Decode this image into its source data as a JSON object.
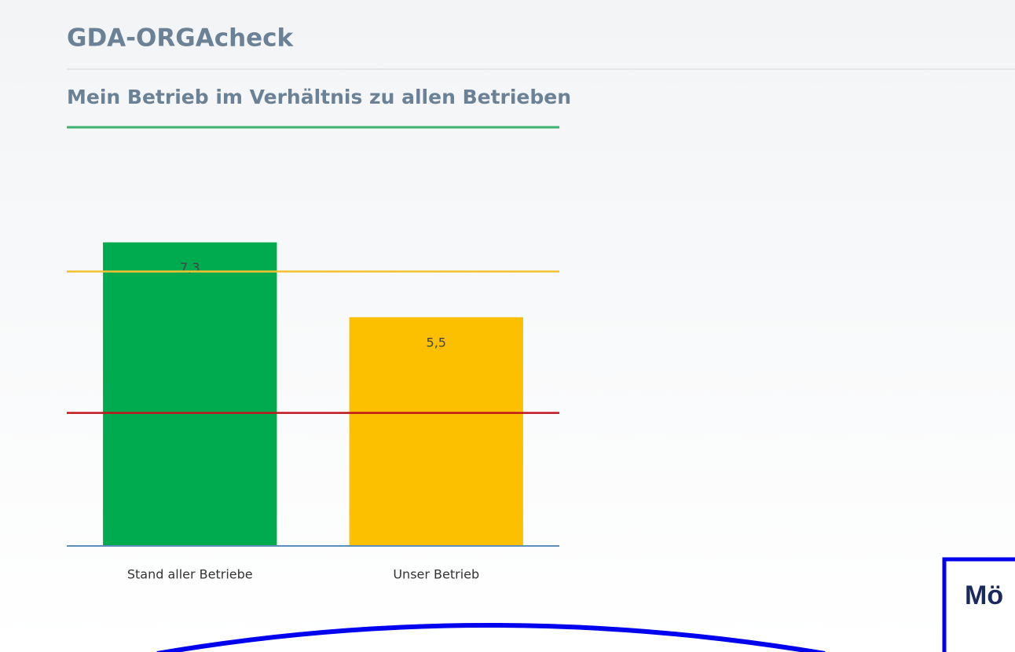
{
  "header": {
    "title": "GDA-ORGAcheck",
    "subtitle": "Mein Betrieb im Verhältnis zu allen Betrieben"
  },
  "chart_data": {
    "type": "bar",
    "categories": [
      "Stand aller Betriebe",
      "Unser Betrieb"
    ],
    "values": [
      7.3,
      5.5
    ],
    "value_labels": [
      "7,3",
      "5,5"
    ],
    "colors": [
      "#00aa4f",
      "#fdc000"
    ],
    "ylim": [
      0,
      8.5
    ],
    "reference_lines": [
      {
        "value": 6.6,
        "color": "#f3c232"
      },
      {
        "value": 3.2,
        "color": "#c0141c"
      }
    ]
  },
  "callout": {
    "text": "Mö"
  }
}
